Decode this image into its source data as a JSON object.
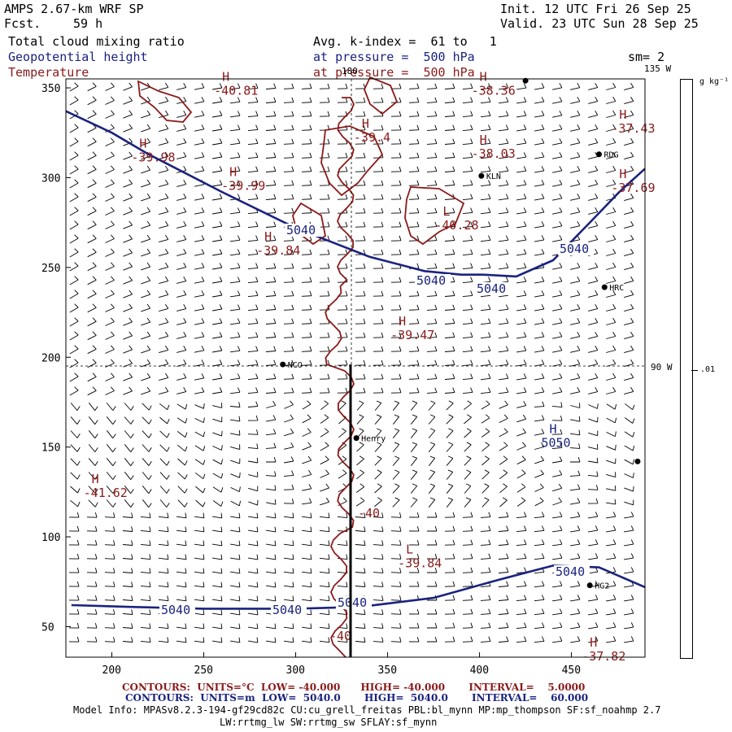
{
  "header": {
    "title": "AMPS 2.67-km WRF SP",
    "fcst_label": "Fcst.",
    "fcst_value": "59 h",
    "init": "Init. 12 UTC Fri 26 Sep 25",
    "valid": "Valid. 23 UTC Sun 28 Sep 25",
    "field1": "Total cloud mixing ratio",
    "field2": "Geopotential height",
    "field3": "Temperature",
    "avg": "Avg. k-index =  61 to   1",
    "press1": "at pressure =  500 hPa",
    "press2": "at pressure =  500 hPa",
    "sm": "sm= 2"
  },
  "colorbar": {
    "unit": "g kg⁻¹",
    "tick": ".01"
  },
  "footer": {
    "red_line": "CONTOURS:  UNITS=°C  LOW= -40.000      HIGH= -40.000       INTERVAL=    5.0000",
    "blue_line": "CONTOURS:  UNITS=m  LOW=  5040.0       HIGH=  5040.0       INTERVAL=    60.000",
    "model_info": "Model Info: MPASv8.2.3-194-gf29cd82c CU:cu_grell_freitas PBL:bl_mynn MP:mp_thompson SF:sf_noahmp 2.7",
    "model_info2": "LW:rrtmg_lw SW:rrtmg_sw SFLAY:sf_mynn"
  },
  "chart_data": {
    "type": "contour",
    "xlim": [
      175,
      490
    ],
    "ylim": [
      33,
      355
    ],
    "x_ticks": [
      200,
      250,
      300,
      350,
      400,
      450
    ],
    "y_ticks": [
      50,
      100,
      150,
      200,
      250,
      300,
      350
    ],
    "meridians": [
      {
        "label": "180",
        "x": 336
      },
      {
        "label": "135 W",
        "x": 474
      },
      {
        "label": "90 W",
        "y": 196
      }
    ],
    "stations": [
      {
        "name": "NCO",
        "x": 293,
        "y": 196
      },
      {
        "name": "Henry",
        "x": 333,
        "y": 155
      },
      {
        "name": "KLN",
        "x": 401,
        "y": 301
      },
      {
        "name": "RDG",
        "x": 465,
        "y": 313
      },
      {
        "name": "HRC",
        "x": 468,
        "y": 239
      },
      {
        "name": "HG2",
        "x": 460,
        "y": 73
      },
      {
        "name": "",
        "x": 425,
        "y": 354
      },
      {
        "name": "",
        "x": 486,
        "y": 142
      }
    ],
    "height_contours": [
      {
        "level": 5040,
        "labels": [
          "5040",
          "5040",
          "5040",
          "5040"
        ],
        "points": [
          [
            175,
            337
          ],
          [
            200,
            325
          ],
          [
            220,
            313
          ],
          [
            260,
            292
          ],
          [
            300,
            272
          ],
          [
            340,
            256
          ],
          [
            370,
            248
          ],
          [
            390,
            246
          ],
          [
            402,
            246
          ]
        ]
      },
      {
        "level": 5040,
        "labels": [
          "5040"
        ],
        "points": [
          [
            402,
            246
          ],
          [
            420,
            245
          ],
          [
            440,
            254
          ],
          [
            460,
            275
          ],
          [
            476,
            292
          ],
          [
            490,
            305
          ]
        ]
      },
      {
        "level": 5040,
        "labels": [
          "5040",
          "5040",
          "5040"
        ],
        "points": [
          [
            178,
            62
          ],
          [
            210,
            61
          ],
          [
            250,
            60
          ],
          [
            300,
            60
          ],
          [
            335,
            61
          ],
          [
            375,
            66
          ],
          [
            410,
            76
          ],
          [
            440,
            84
          ],
          [
            465,
            83
          ],
          [
            490,
            72
          ]
        ]
      }
    ],
    "highs_lows": [
      {
        "type": "H",
        "value": "-40.81",
        "x": 260,
        "y": 352
      },
      {
        "type": "H",
        "value": "-38.36",
        "x": 400,
        "y": 352
      },
      {
        "type": "H",
        "value": "-39.4",
        "x": 336,
        "y": 326
      },
      {
        "type": "H",
        "value": "-37.43",
        "x": 476,
        "y": 331
      },
      {
        "type": "H",
        "value": "-39.98",
        "x": 215,
        "y": 315
      },
      {
        "type": "H",
        "value": "-38.03",
        "x": 400,
        "y": 317
      },
      {
        "type": "H",
        "value": "-39.99",
        "x": 264,
        "y": 299
      },
      {
        "type": "H",
        "value": "-37.69",
        "x": 476,
        "y": 298
      },
      {
        "type": "L",
        "value": "-40.28",
        "x": 380,
        "y": 277
      },
      {
        "type": "H",
        "value": "-39.84",
        "x": 283,
        "y": 263
      },
      {
        "type": "H",
        "value": "-39.47",
        "x": 356,
        "y": 216
      },
      {
        "type": "H",
        "value": "5050",
        "x": 438,
        "y": 156
      },
      {
        "type": "H",
        "value": "-41.62",
        "x": 189,
        "y": 128
      },
      {
        "type": "L",
        "value": "-39.84",
        "x": 360,
        "y": 89
      },
      {
        "type": "H",
        "value": "-37.82",
        "x": 460,
        "y": 37
      }
    ],
    "temperature_contours": [
      {
        "level": -40,
        "labels": [
          "-40",
          "-40"
        ],
        "x_center": 334
      }
    ],
    "cross_section_line": {
      "x": 334,
      "y0": 33,
      "y1": 196
    },
    "wind_barbs": "field",
    "title": "Total cloud mixing ratio / Geopotential height / Temperature at 500 hPa"
  }
}
